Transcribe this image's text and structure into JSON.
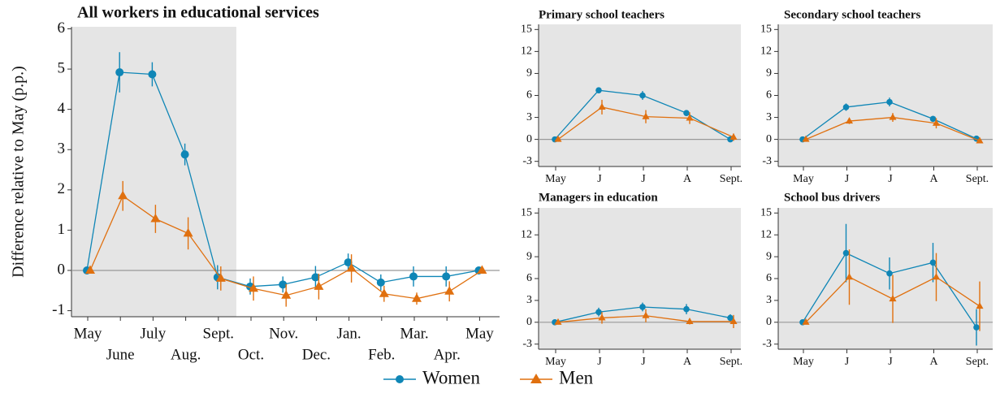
{
  "chart_data": [
    {
      "type": "line",
      "title": "All workers in educational services",
      "y_label": "Difference relative to May (p.p.)",
      "categories": [
        "May",
        "June",
        "July",
        "Aug.",
        "Sept.",
        "Oct.",
        "Nov.",
        "Dec.",
        "Jan.",
        "Feb.",
        "Mar.",
        "Apr.",
        "May"
      ],
      "ylim": [
        -1.15,
        6.05
      ],
      "yticks": [
        -1,
        0,
        1,
        2,
        3,
        4,
        5,
        6
      ],
      "series": [
        {
          "name": "Women",
          "color": "#0f86b6",
          "marker": "circle",
          "values": [
            0,
            4.92,
            4.87,
            2.88,
            -0.17,
            -0.4,
            -0.35,
            -0.17,
            0.2,
            -0.3,
            -0.15,
            -0.15,
            0
          ],
          "errors": [
            0,
            0.5,
            0.3,
            0.27,
            0.3,
            0.2,
            0.2,
            0.28,
            0.22,
            0.2,
            0.25,
            0.25,
            0
          ]
        },
        {
          "name": "Men",
          "color": "#e0700f",
          "marker": "triangle",
          "values": [
            0,
            1.85,
            1.28,
            0.92,
            -0.2,
            -0.45,
            -0.62,
            -0.4,
            0.05,
            -0.58,
            -0.7,
            -0.52,
            0
          ],
          "errors": [
            0,
            0.37,
            0.35,
            0.4,
            0.3,
            0.3,
            0.28,
            0.32,
            0.35,
            0.2,
            0.15,
            0.25,
            0
          ]
        }
      ]
    },
    {
      "type": "line",
      "title": "Primary school teachers",
      "categories": [
        "May",
        "J",
        "J",
        "A",
        "Sept."
      ],
      "ylim": [
        -3.7,
        15.7
      ],
      "yticks": [
        -3,
        0,
        3,
        6,
        9,
        12,
        15
      ],
      "series": [
        {
          "name": "Women",
          "color": "#0f86b6",
          "marker": "circle",
          "values": [
            0,
            6.7,
            6.0,
            3.6,
            0
          ],
          "errors": [
            0,
            0.4,
            0.6,
            0.4,
            0
          ]
        },
        {
          "name": "Men",
          "color": "#e0700f",
          "marker": "triangle",
          "values": [
            0,
            4.4,
            3.1,
            2.9,
            0.3
          ],
          "errors": [
            0,
            1.0,
            0.9,
            0.8,
            0.5
          ]
        }
      ]
    },
    {
      "type": "line",
      "title": "Secondary school teachers",
      "categories": [
        "May",
        "J",
        "J",
        "A",
        "Sept."
      ],
      "ylim": [
        -3.7,
        15.7
      ],
      "yticks": [
        -3,
        0,
        3,
        6,
        9,
        12,
        15
      ],
      "series": [
        {
          "name": "Women",
          "color": "#0f86b6",
          "marker": "circle",
          "values": [
            0,
            4.4,
            5.1,
            2.8,
            0.1
          ],
          "errors": [
            0,
            0.5,
            0.6,
            0.4,
            0.1
          ]
        },
        {
          "name": "Men",
          "color": "#e0700f",
          "marker": "triangle",
          "values": [
            0,
            2.5,
            3.0,
            2.2,
            -0.2
          ],
          "errors": [
            0,
            0.4,
            0.6,
            0.7,
            0.2
          ]
        }
      ]
    },
    {
      "type": "line",
      "title": "Managers in education",
      "categories": [
        "May",
        "J",
        "J",
        "A",
        "Sept."
      ],
      "ylim": [
        -3.7,
        15.7
      ],
      "yticks": [
        -3,
        0,
        3,
        6,
        9,
        12,
        15
      ],
      "series": [
        {
          "name": "Women",
          "color": "#0f86b6",
          "marker": "circle",
          "values": [
            0,
            1.4,
            2.1,
            1.8,
            0.6
          ],
          "errors": [
            0,
            0.6,
            0.6,
            0.7,
            0.5
          ]
        },
        {
          "name": "Men",
          "color": "#e0700f",
          "marker": "triangle",
          "values": [
            0,
            0.6,
            0.9,
            0.1,
            0.1
          ],
          "errors": [
            0,
            0.8,
            0.9,
            0.4,
            0.9
          ]
        }
      ]
    },
    {
      "type": "line",
      "title": "School bus drivers",
      "categories": [
        "May",
        "J",
        "J",
        "A",
        "Sept."
      ],
      "ylim": [
        -3.7,
        15.7
      ],
      "yticks": [
        -3,
        0,
        3,
        6,
        9,
        12,
        15
      ],
      "series": [
        {
          "name": "Women",
          "color": "#0f86b6",
          "marker": "circle",
          "values": [
            0,
            9.5,
            6.7,
            8.2,
            -0.7
          ],
          "errors": [
            0,
            4.0,
            2.2,
            2.7,
            2.5
          ]
        },
        {
          "name": "Men",
          "color": "#e0700f",
          "marker": "triangle",
          "values": [
            0,
            6.2,
            3.2,
            6.2,
            2.2
          ],
          "errors": [
            0,
            3.8,
            3.3,
            3.3,
            3.4
          ]
        }
      ]
    }
  ]
}
